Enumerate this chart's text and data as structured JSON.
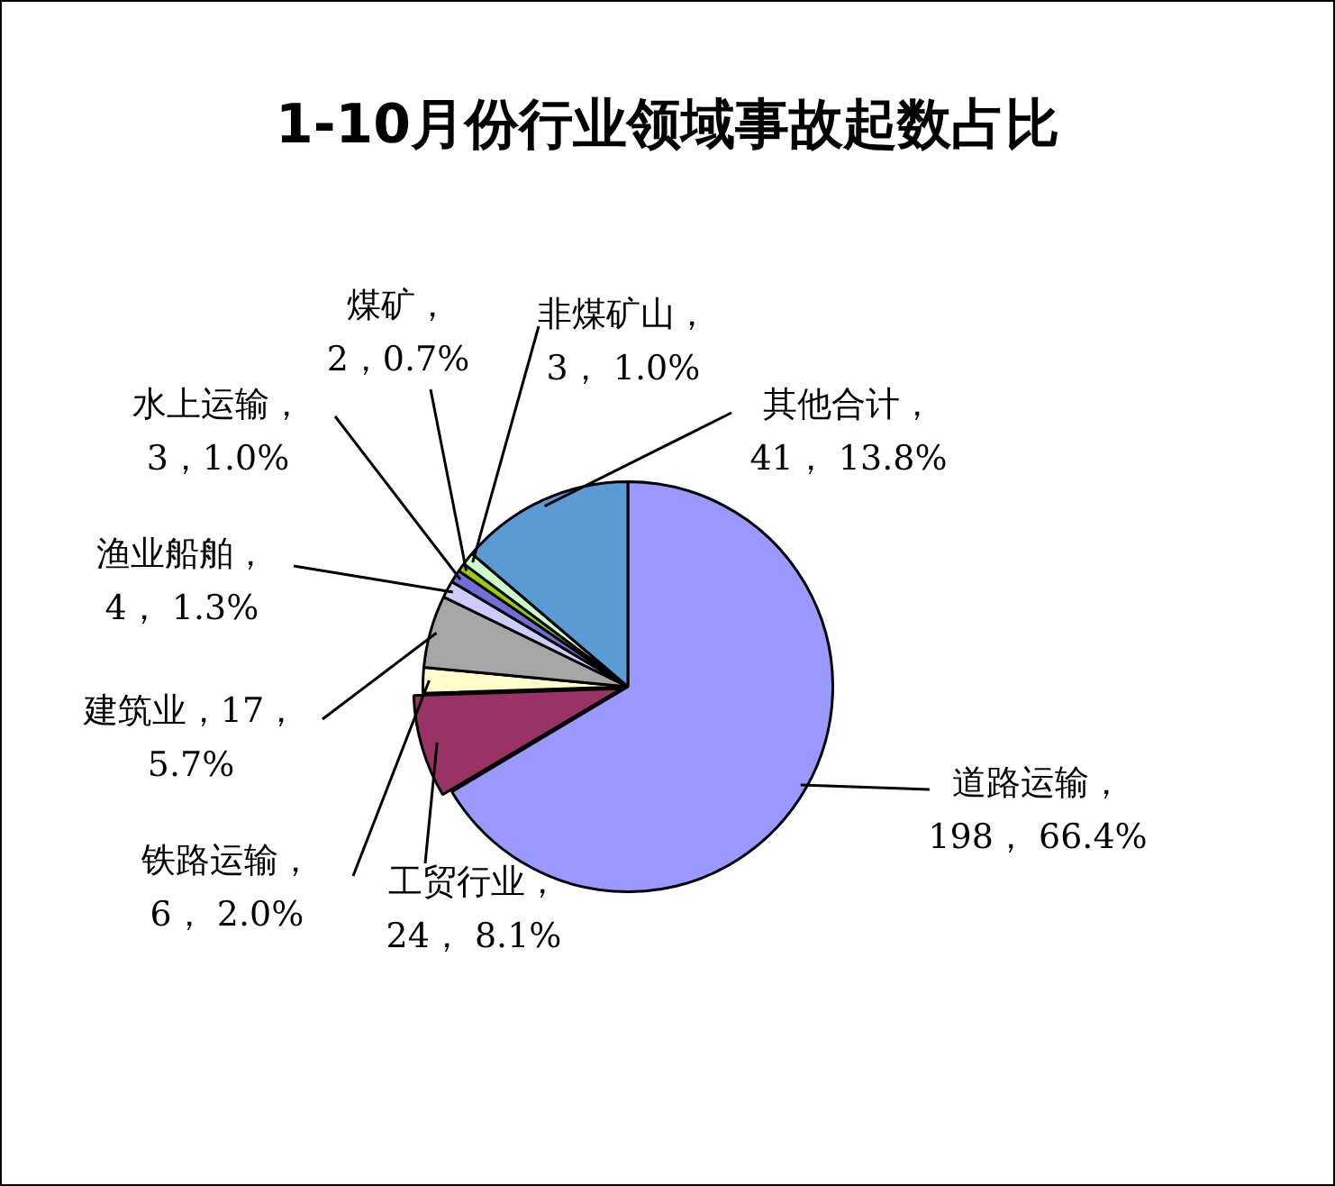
{
  "chart_data": {
    "type": "pie",
    "title": "1-10月份行业领域事故起数占比",
    "categories": [
      "道路运输",
      "工贸行业",
      "铁路运输",
      "建筑业",
      "渔业船舶",
      "水上运输",
      "煤矿",
      "非煤矿山",
      "其他合计"
    ],
    "values": [
      198,
      24,
      6,
      17,
      4,
      3,
      2,
      3,
      41
    ],
    "colors": [
      "#9999ff",
      "#993366",
      "#ffffcc",
      "#a6a6a6",
      "#ccccff",
      "#6f6fd6",
      "#99cc00",
      "#ccffcc",
      "#5b9bd5"
    ],
    "value_labels": [
      "，\n198， 66.4%",
      "，\n24， 8.1%",
      "，\n6， 2.0%",
      "，17，\n5.7%",
      "，\n4， 1.3%",
      "，\n3，1.0%",
      "，\n2，0.7%",
      "，\n3， 1.0%",
      "，\n41， 13.8%"
    ],
    "legend": false
  }
}
